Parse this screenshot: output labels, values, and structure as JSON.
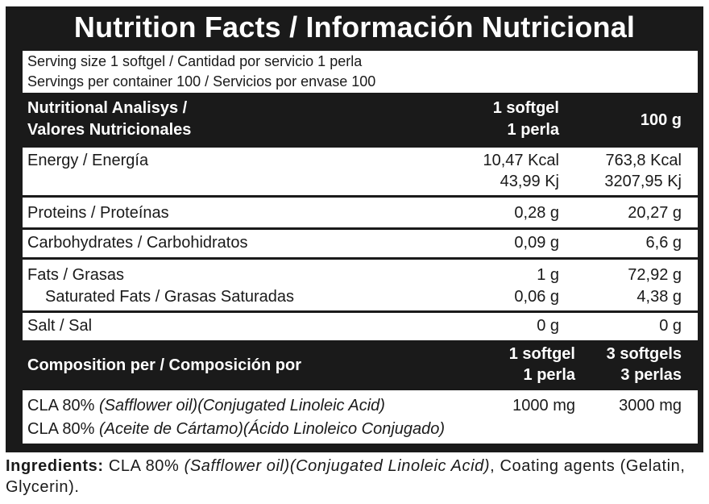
{
  "title": "Nutrition Facts / Información Nutricional",
  "serving": {
    "size": "Serving size 1 softgel / Cantidad por servicio 1 perla",
    "per_container": "Servings per container 100 / Servicios por envase 100"
  },
  "analysis_header": {
    "label_line1": "Nutritional Analisys /",
    "label_line2": "Valores Nutricionales",
    "col1_line1": "1 softgel",
    "col1_line2": "1 perla",
    "col2": "100 g"
  },
  "nutrients": {
    "energy": {
      "label": "Energy / Energía",
      "col1_kcal": "10,47 Kcal",
      "col1_kj": "43,99 Kj",
      "col2_kcal": "763,8 Kcal",
      "col2_kj": "3207,95 Kj"
    },
    "proteins": {
      "label": "Proteins / Proteínas",
      "col1": "0,28 g",
      "col2": "20,27 g"
    },
    "carbs": {
      "label": "Carbohydrates / Carbohidratos",
      "col1": "0,09 g",
      "col2": "6,6 g"
    },
    "fats": {
      "label": "Fats / Grasas",
      "col1": "1 g",
      "col2": "72,92 g"
    },
    "saturated": {
      "label": "Saturated Fats / Grasas Saturadas",
      "col1": "0,06 g",
      "col2": "4,38 g"
    },
    "salt": {
      "label": "Salt / Sal",
      "col1": "0 g",
      "col2": "0 g"
    }
  },
  "composition_header": {
    "label": "Composition per / Composición por",
    "col1_line1": "1 softgel",
    "col1_line2": "1 perla",
    "col2_line1": "3 softgels",
    "col2_line2": "3 perlas"
  },
  "composition": {
    "en_prefix": "CLA 80% ",
    "en_italic": "(Safflower oil)(Conjugated Linoleic Acid)",
    "col1": "1000 mg",
    "col2": "3000 mg",
    "es_prefix": "CLA 80% ",
    "es_italic": "(Aceite de Cártamo)(Ácido Linoleico Conjugado)"
  },
  "ingredients": {
    "label": "Ingredients:",
    "text1": " CLA 80% ",
    "italic": "(Safflower oil)(Conjugated Linoleic Acid)",
    "text2": ", Coating agents (Gelatin, Glycerin)."
  }
}
